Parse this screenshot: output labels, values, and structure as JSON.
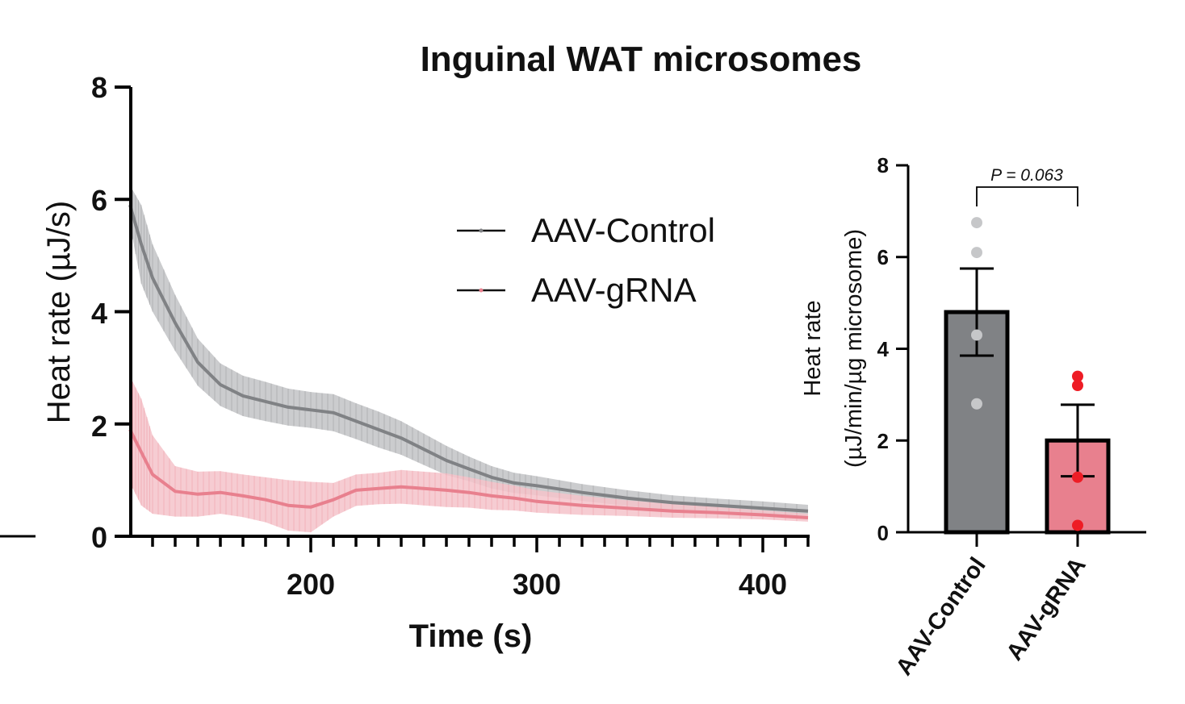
{
  "title": "Inguinal WAT microsomes",
  "colors": {
    "control": "#808285",
    "control_band": "#c2c3c6",
    "grna": "#e8808e",
    "grna_band": "#f4c3ca",
    "control_dot": "#c6c7c9",
    "grna_dot": "#ee1c25",
    "axis": "#000000"
  },
  "chart_data": [
    {
      "type": "line",
      "xlabel": "Time (s)",
      "ylabel": "Heat rate (µJ/s)",
      "xlim": [
        120,
        420
      ],
      "ylim": [
        0,
        8
      ],
      "x_ticks": [
        "200",
        "300",
        "400"
      ],
      "y_ticks": [
        "0",
        "2",
        "4",
        "6",
        "8"
      ],
      "legend": [
        "AAV-Control",
        "AAV-gRNA"
      ],
      "series": [
        {
          "name": "AAV-Control",
          "x": [
            120,
            125,
            130,
            140,
            150,
            160,
            170,
            180,
            190,
            200,
            210,
            220,
            230,
            240,
            250,
            260,
            270,
            280,
            290,
            300,
            320,
            340,
            360,
            380,
            400,
            420
          ],
          "mean": [
            5.9,
            5.2,
            4.6,
            3.8,
            3.1,
            2.7,
            2.5,
            2.4,
            2.3,
            2.25,
            2.2,
            2.05,
            1.9,
            1.75,
            1.55,
            1.35,
            1.2,
            1.05,
            0.95,
            0.9,
            0.78,
            0.68,
            0.6,
            0.55,
            0.5,
            0.45
          ],
          "err": [
            0.35,
            0.7,
            0.6,
            0.5,
            0.42,
            0.38,
            0.36,
            0.35,
            0.33,
            0.32,
            0.33,
            0.32,
            0.32,
            0.3,
            0.28,
            0.26,
            0.22,
            0.2,
            0.18,
            0.17,
            0.15,
            0.14,
            0.13,
            0.12,
            0.12,
            0.11
          ]
        },
        {
          "name": "AAV-gRNA",
          "x": [
            120,
            125,
            130,
            140,
            150,
            160,
            170,
            180,
            190,
            200,
            210,
            220,
            230,
            240,
            250,
            260,
            270,
            280,
            290,
            300,
            320,
            340,
            360,
            380,
            400,
            420
          ],
          "mean": [
            1.9,
            1.5,
            1.1,
            0.8,
            0.75,
            0.78,
            0.72,
            0.65,
            0.55,
            0.52,
            0.65,
            0.82,
            0.85,
            0.88,
            0.85,
            0.82,
            0.78,
            0.72,
            0.68,
            0.62,
            0.55,
            0.5,
            0.45,
            0.42,
            0.38,
            0.33
          ],
          "err": [
            0.95,
            0.95,
            0.7,
            0.45,
            0.4,
            0.38,
            0.38,
            0.4,
            0.45,
            0.45,
            0.3,
            0.28,
            0.28,
            0.3,
            0.3,
            0.3,
            0.27,
            0.25,
            0.22,
            0.2,
            0.17,
            0.14,
            0.12,
            0.1,
            0.08,
            0.07
          ]
        }
      ]
    },
    {
      "type": "bar",
      "categories": [
        "AAV-Control",
        "AAV-gRNA"
      ],
      "values": [
        4.8,
        2.0
      ],
      "errors": [
        0.95,
        0.78
      ],
      "points": [
        [
          6.75,
          6.1,
          4.3,
          2.8
        ],
        [
          3.4,
          3.2,
          1.2,
          0.15
        ]
      ],
      "ylabel": "Heat rate",
      "ylabel_units": "(µJ/min/µg microsome)",
      "ylim": [
        0,
        8
      ],
      "y_ticks": [
        "0",
        "2",
        "4",
        "6",
        "8"
      ],
      "annotation": "P = 0.063"
    }
  ]
}
